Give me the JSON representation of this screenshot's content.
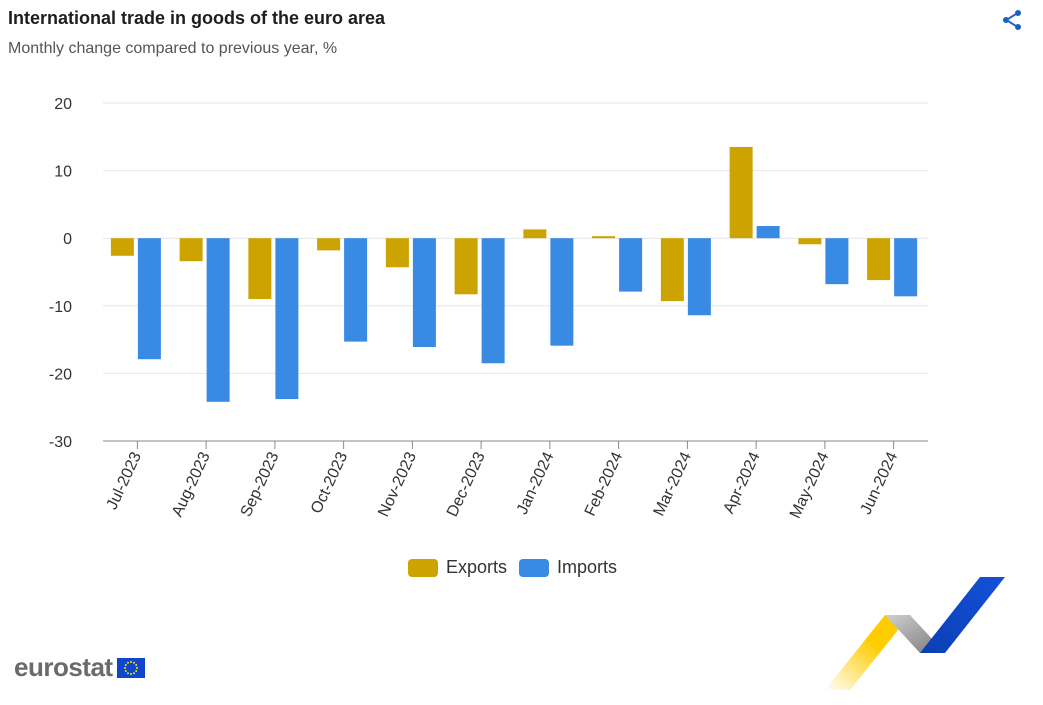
{
  "header": {
    "title": "International trade in goods of the euro area",
    "subtitle": "Monthly change compared to previous year, %"
  },
  "icons": {
    "share": "share-icon"
  },
  "colors": {
    "exports": "#cca300",
    "imports": "#388ae2",
    "grid": "#e6e6e6",
    "axis": "#888888"
  },
  "chart_data": {
    "type": "bar",
    "categories": [
      "Jul-2023",
      "Aug-2023",
      "Sep-2023",
      "Oct-2023",
      "Nov-2023",
      "Dec-2023",
      "Jan-2024",
      "Feb-2024",
      "Mar-2024",
      "Apr-2024",
      "May-2024",
      "Jun-2024"
    ],
    "series": [
      {
        "name": "Exports",
        "values": [
          -2.6,
          -3.4,
          -9.0,
          -1.8,
          -4.3,
          -8.3,
          1.3,
          0.3,
          -9.3,
          13.5,
          -0.9,
          -6.2
        ]
      },
      {
        "name": "Imports",
        "values": [
          -17.9,
          -24.2,
          -23.8,
          -15.3,
          -16.1,
          -18.5,
          -15.9,
          -7.9,
          -11.4,
          1.8,
          -6.8,
          -8.6
        ]
      }
    ],
    "yticks": [
      20,
      10,
      0,
      -10,
      -20,
      -30
    ],
    "ylim": [
      -30,
      20
    ],
    "grid": true,
    "legend_position": "bottom"
  },
  "brand": {
    "logo_text": "eurostat"
  }
}
